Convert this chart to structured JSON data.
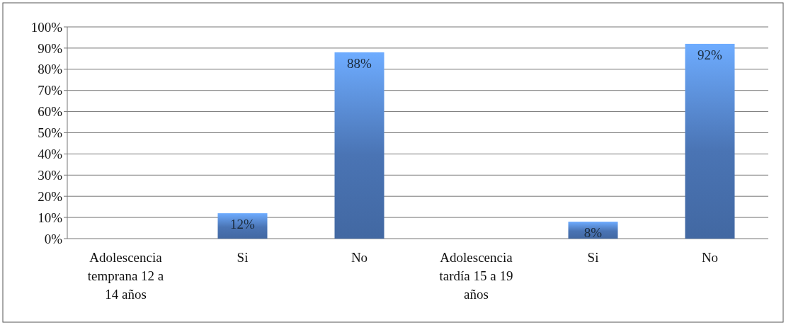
{
  "chart_data": {
    "type": "bar",
    "categories": [
      "Adolescencia temprana 12 a 14 años",
      "Si",
      "No",
      "Adolescencia tardía 15 a 19 años",
      "Si",
      "No"
    ],
    "values": [
      null,
      12,
      88,
      null,
      8,
      92
    ],
    "value_labels": [
      null,
      "12%",
      "88%",
      null,
      "8%",
      "92%"
    ],
    "color": "#4a74b4",
    "ylim": [
      0,
      100
    ],
    "yticks": [
      {
        "value": 0,
        "label": "0%"
      },
      {
        "value": 10,
        "label": "10%"
      },
      {
        "value": 20,
        "label": "20%"
      },
      {
        "value": 30,
        "label": "30%"
      },
      {
        "value": 40,
        "label": "40%"
      },
      {
        "value": 50,
        "label": "50%"
      },
      {
        "value": 60,
        "label": "60%"
      },
      {
        "value": 70,
        "label": "70%"
      },
      {
        "value": 80,
        "label": "80%"
      },
      {
        "value": 90,
        "label": "90%"
      },
      {
        "value": 100,
        "label": "100%"
      }
    ],
    "grid": "y"
  }
}
